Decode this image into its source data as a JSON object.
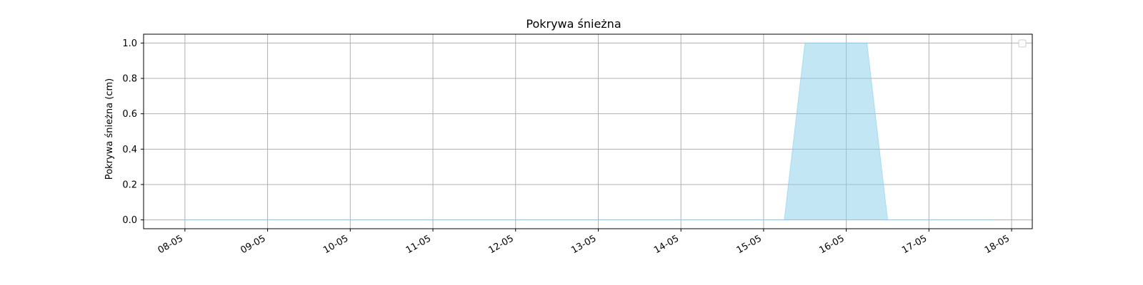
{
  "chart_data": {
    "type": "area",
    "title": "Pokrywa śnieżna",
    "xlabel": "",
    "ylabel": "Pokrywa śnieżna (cm)",
    "x_ticks": [
      "08-05",
      "09-05",
      "10-05",
      "11-05",
      "12-05",
      "13-05",
      "14-05",
      "15-05",
      "16-05",
      "17-05",
      "18-05"
    ],
    "y_ticks": [
      "0.0",
      "0.2",
      "0.4",
      "0.6",
      "0.8",
      "1.0"
    ],
    "ylim": [
      -0.05,
      1.05
    ],
    "xlim": [
      -0.5,
      10.25
    ],
    "grid": true,
    "legend": "top-right",
    "series": [
      {
        "x": [
          0,
          7.25,
          7.5,
          8.25,
          8.5,
          9.75
        ],
        "y": [
          0,
          0,
          1,
          1,
          0,
          0
        ]
      }
    ],
    "fill_color": "#87ceeb",
    "line_color": "#87ceeb"
  }
}
